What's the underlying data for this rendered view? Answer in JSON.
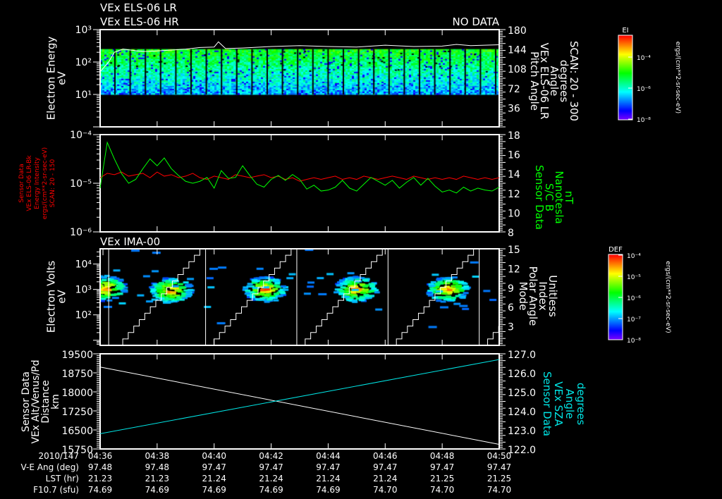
{
  "header": {
    "title_lr": "VEx ELS-06 LR",
    "title_hr": "VEx ELS-06 HR",
    "no_data": "NO DATA",
    "ima_title": "VEx IMA-00"
  },
  "chart_data": [
    {
      "type": "heatmap",
      "name": "ELS electron energy spectrogram",
      "ylabel": [
        "Electron Energy",
        "eV"
      ],
      "ylim_log10": [
        0,
        3
      ],
      "ytick_labels": [
        "10³",
        "10²",
        "10¹"
      ],
      "y2label": [
        "Pitch Angle",
        "VEx ELS-06 LR",
        "Angle",
        "degrees",
        "SCAN: 20 - 300"
      ],
      "y2lim": [
        0,
        180
      ],
      "y2tick_labels": [
        "180",
        "144",
        "108",
        "72",
        "36"
      ],
      "energy_range_eV": [
        10,
        250
      ],
      "overlay_line": {
        "t_min": [
          0,
          0.3,
          0.5,
          0.8,
          1.5,
          2,
          3,
          3.5,
          4.0,
          4.15,
          4.4,
          5,
          6,
          7,
          8,
          9,
          10,
          11,
          12,
          12.5,
          13,
          13.5,
          14
        ],
        "eV": [
          50,
          100,
          200,
          250,
          210,
          220,
          250,
          280,
          290,
          420,
          260,
          270,
          300,
          320,
          300,
          290,
          330,
          300,
          310,
          350,
          320,
          330,
          340
        ]
      },
      "colorbar": {
        "label": "EI",
        "units": "ergs/(cm**2-sr-sec-eV)",
        "tick_labels": [
          "10⁻⁴",
          "10⁻⁶",
          "10⁻⁸"
        ]
      }
    },
    {
      "type": "line",
      "name": "Sensor data vs magnetic field",
      "ylabel": [
        "Sensor Data",
        "VEx ELS-06 LR-Bk",
        "Energy Intensity",
        "ergs/(cm**2-sr-sec-eV)",
        "SCAN: 20 - 150"
      ],
      "ylim_log10": [
        -6,
        -4
      ],
      "ytick_labels": [
        "10⁻⁴",
        "10⁻⁵",
        "10⁻⁶"
      ],
      "y2label": [
        "Sensor Data",
        "S/C B",
        "Nanotesla",
        "nT"
      ],
      "y2lim": [
        8,
        18
      ],
      "y2tick_labels": [
        "18",
        "16",
        "14",
        "12",
        "10",
        "8"
      ],
      "series": [
        {
          "name": "Energy Intensity (x1e-5)",
          "color": "#ff0000",
          "values": [
            1.3,
            1.6,
            1.5,
            1.7,
            1.4,
            1.5,
            1.6,
            1.3,
            1.7,
            1.4,
            1.5,
            1.3,
            1.4,
            1.6,
            1.3,
            1.2,
            1.4,
            1.3,
            1.2,
            1.5,
            1.4,
            1.3,
            1.4,
            1.5,
            1.3,
            1.4,
            1.2,
            1.3,
            1.1,
            1.2,
            1.3,
            1.2,
            1.3,
            1.4,
            1.2,
            1.3,
            1.2,
            1.4,
            1.3,
            1.2,
            1.3,
            1.4,
            1.3,
            1.2,
            1.4,
            1.3,
            1.2,
            1.3,
            1.2,
            1.3,
            1.2,
            1.4,
            1.3,
            1.2,
            1.3,
            1.2,
            1.3
          ]
        },
        {
          "name": "S/C B (nT)",
          "color": "#00ff00",
          "values": [
            12.5,
            17.2,
            15.5,
            14.0,
            13.0,
            13.4,
            14.5,
            15.5,
            14.8,
            15.6,
            14.5,
            13.8,
            13.2,
            13.0,
            13.2,
            13.6,
            12.5,
            14.3,
            13.5,
            13.6,
            14.8,
            13.8,
            12.9,
            12.6,
            13.4,
            13.8,
            13.3,
            13.9,
            13.4,
            12.4,
            12.8,
            12.2,
            12.3,
            12.6,
            13.3,
            12.5,
            12.2,
            12.9,
            13.6,
            13.2,
            12.8,
            13.3,
            12.5,
            13.1,
            13.6,
            12.8,
            13.5,
            12.7,
            12.1,
            12.3,
            12.0,
            12.6,
            12.2,
            12.5,
            12.3,
            12.2,
            12.6
          ]
        }
      ]
    },
    {
      "type": "heatmap",
      "name": "IMA ion spectrogram",
      "ylabel": [
        "Electron Volts",
        "eV"
      ],
      "ylim_log10": [
        0.8,
        4.6
      ],
      "ytick_labels": [
        "10⁴",
        "10³",
        "10²"
      ],
      "y2label": [
        "Mode",
        "Polar Angle",
        "Index",
        "Unitless"
      ],
      "y2lim": [
        0,
        15
      ],
      "y2tick_labels": [
        "15",
        "12",
        "9",
        "6",
        "3"
      ],
      "blob_centers": {
        "t_min": [
          0.1,
          2.4,
          5.7,
          8.9,
          12.1
        ],
        "eV": [
          1200,
          1000,
          1100,
          1100,
          1100
        ]
      },
      "polar_sweep_start_min": [
        -2.8,
        0.6,
        3.8,
        7.0,
        10.2,
        13.4
      ],
      "polar_sweep_duration_min": 2.9,
      "colorbar": {
        "label": "DEF",
        "units": "ergs/(cm**2-sr-sec-eV)",
        "tick_labels": [
          "10⁻⁴",
          "10⁻⁵",
          "10⁻⁶",
          "10⁻⁷",
          "10⁻⁸"
        ]
      }
    },
    {
      "type": "line",
      "name": "Altitude and SZA",
      "ylabel": [
        "Sensor Data",
        "VEx Alt/Venus/Pd",
        "Distance",
        "km"
      ],
      "ylim": [
        15750,
        19500
      ],
      "ytick_labels": [
        "19500",
        "18750",
        "18000",
        "17250",
        "16500",
        "15750"
      ],
      "y2label": [
        "Sensor Data",
        "VEx SZA",
        "Angle",
        "degrees"
      ],
      "y2lim": [
        122,
        127
      ],
      "y2tick_labels": [
        "127.0",
        "126.0",
        "125.0",
        "124.0",
        "123.0",
        "122.0"
      ],
      "series": [
        {
          "name": "Altitude (km)",
          "color": "#ffffff",
          "t_min": [
            0,
            14
          ],
          "values": [
            18980,
            15930
          ]
        },
        {
          "name": "SZA (deg)",
          "color": "#00e5e5",
          "t_min": [
            0,
            14
          ],
          "values": [
            122.8,
            126.7
          ]
        }
      ]
    }
  ],
  "time_axis": {
    "row_labels": [
      "2010/147",
      "V-E Ang (deg)",
      "LST (hr)",
      "F10.7 (sfu)"
    ],
    "ticks": [
      "04:36",
      "04:38",
      "04:40",
      "04:42",
      "04:44",
      "04:46",
      "04:48",
      "04:50"
    ],
    "ve_ang": [
      "97.48",
      "97.48",
      "97.47",
      "97.47",
      "97.47",
      "97.47",
      "97.47",
      "97.47"
    ],
    "lst": [
      "21.23",
      "21.23",
      "21.24",
      "21.24",
      "21.24",
      "21.24",
      "21.25",
      "21.25"
    ],
    "f107": [
      "74.69",
      "74.69",
      "74.69",
      "74.69",
      "74.69",
      "74.70",
      "74.70",
      "74.70"
    ]
  }
}
